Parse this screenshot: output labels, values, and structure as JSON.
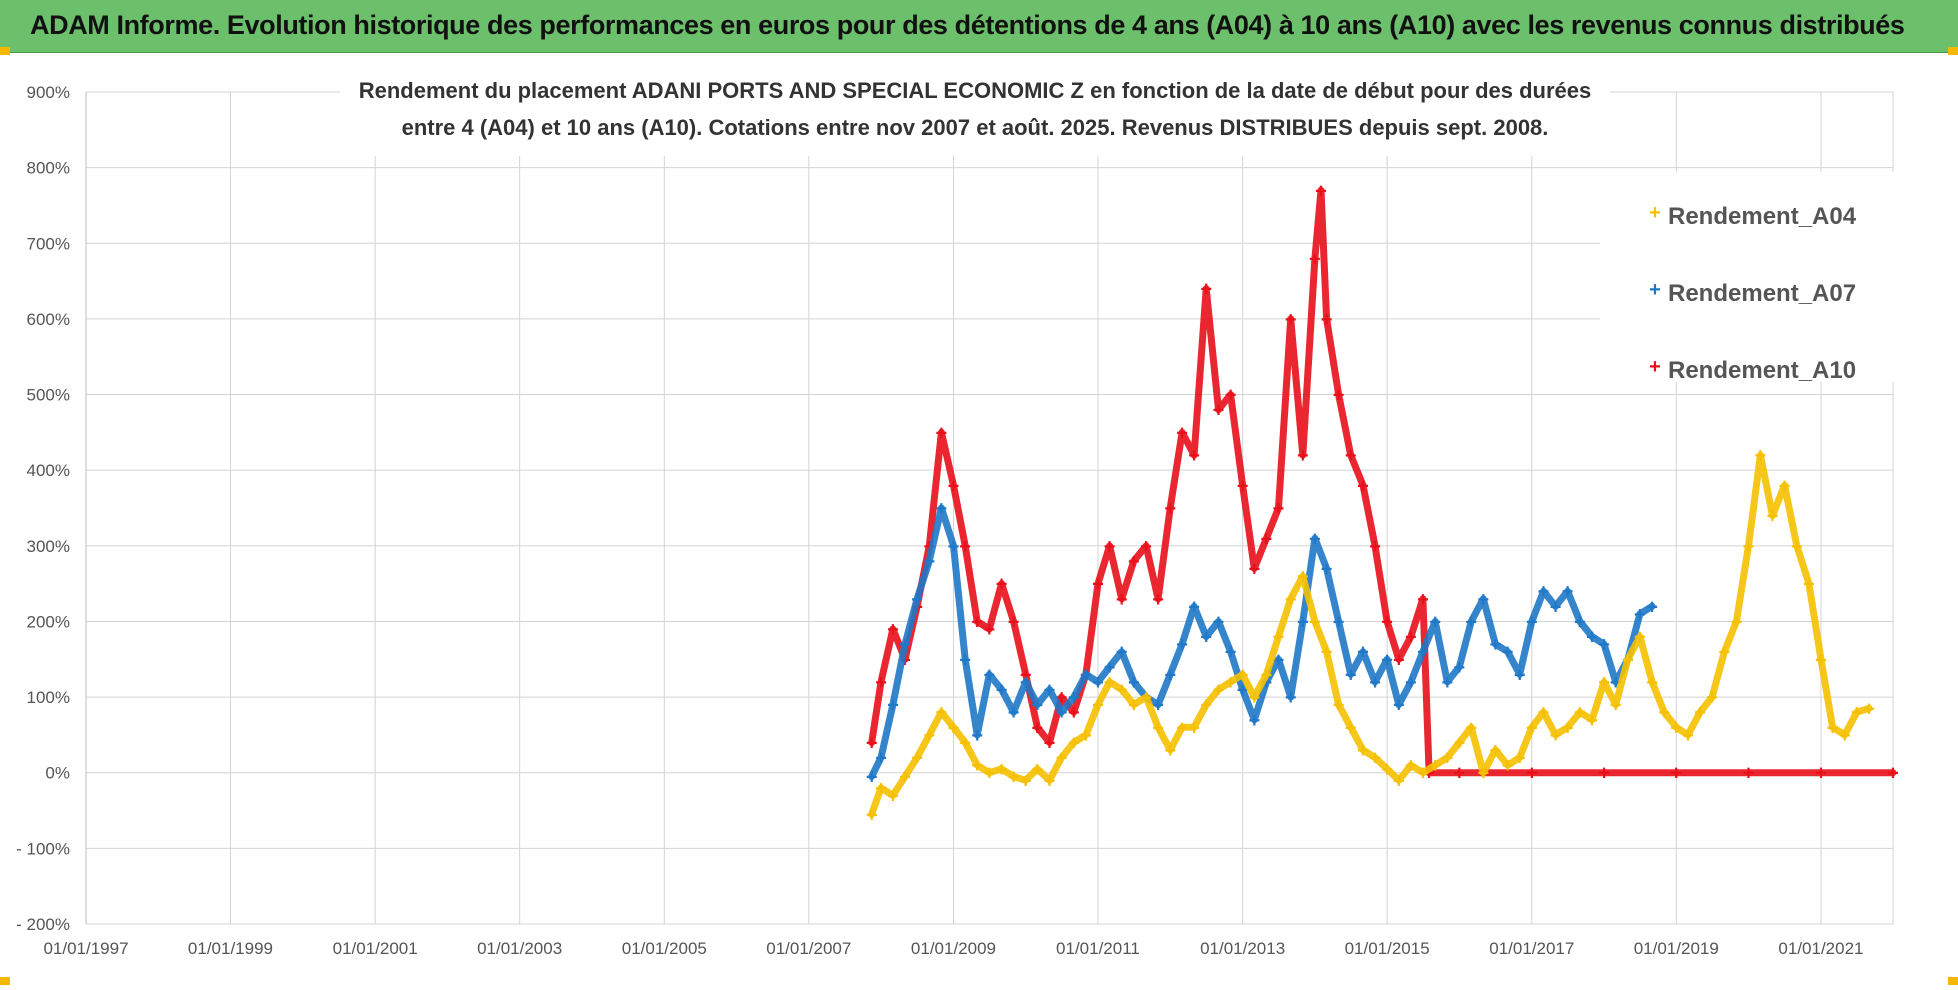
{
  "banner": {
    "title": "ADAM Informe. Evolution historique des performances en euros pour des détentions de 4 ans (A04) à 10 ans (A10) avec les revenus connus distribués"
  },
  "colors": {
    "banner_bg": "#6cc06c",
    "accent_corner": "#f5b800",
    "A04": "#f5c000",
    "A07": "#1f78c8",
    "A10": "#e8101a"
  },
  "chart_data": {
    "type": "scatter",
    "title_line1": "Rendement du placement ADANI PORTS AND SPECIAL ECONOMIC Z en fonction de la date de début pour des durées",
    "title_line2": "entre 4 (A04) et 10 ans (A10). Cotations entre nov 2007 et août. 2025. Revenus DISTRIBUES depuis sept. 2008.",
    "xlabel": "",
    "ylabel": "",
    "x_range": [
      "1997-01-01",
      "2021-12-31"
    ],
    "ylim": [
      -200,
      900
    ],
    "y_ticks": [
      -200,
      -100,
      0,
      100,
      200,
      300,
      400,
      500,
      600,
      700,
      800,
      900
    ],
    "y_tick_labels": [
      "- 200%",
      "- 100%",
      "0%",
      "100%",
      "200%",
      "300%",
      "400%",
      "500%",
      "600%",
      "700%",
      "800%",
      "900%"
    ],
    "x_tick_labels": [
      "01/01/1997",
      "01/01/1999",
      "01/01/2001",
      "01/01/2003",
      "01/01/2005",
      "01/01/2007",
      "01/01/2009",
      "01/01/2011",
      "01/01/2013",
      "01/01/2015",
      "01/01/2017",
      "01/01/2019",
      "01/01/2021"
    ],
    "x_tick_dates": [
      "1997-01-01",
      "1999-01-01",
      "2001-01-01",
      "2003-01-01",
      "2005-01-01",
      "2007-01-01",
      "2009-01-01",
      "2011-01-01",
      "2013-01-01",
      "2015-01-01",
      "2017-01-01",
      "2019-01-01",
      "2021-01-01"
    ],
    "grid": true,
    "legend_position": "top-right",
    "series": [
      {
        "name": "Rendement_A04",
        "marker": "+",
        "points": [
          [
            "2007-11-15",
            -55
          ],
          [
            "2008-01-01",
            -20
          ],
          [
            "2008-03-01",
            -30
          ],
          [
            "2008-05-01",
            -5
          ],
          [
            "2008-07-01",
            20
          ],
          [
            "2008-09-01",
            50
          ],
          [
            "2008-11-01",
            80
          ],
          [
            "2009-01-01",
            60
          ],
          [
            "2009-03-01",
            40
          ],
          [
            "2009-05-01",
            10
          ],
          [
            "2009-07-01",
            0
          ],
          [
            "2009-09-01",
            5
          ],
          [
            "2009-11-01",
            -5
          ],
          [
            "2010-01-01",
            -10
          ],
          [
            "2010-03-01",
            5
          ],
          [
            "2010-05-01",
            -10
          ],
          [
            "2010-07-01",
            20
          ],
          [
            "2010-09-01",
            40
          ],
          [
            "2010-11-01",
            50
          ],
          [
            "2011-01-01",
            90
          ],
          [
            "2011-03-01",
            120
          ],
          [
            "2011-05-01",
            110
          ],
          [
            "2011-07-01",
            90
          ],
          [
            "2011-09-01",
            100
          ],
          [
            "2011-11-01",
            60
          ],
          [
            "2012-01-01",
            30
          ],
          [
            "2012-03-01",
            60
          ],
          [
            "2012-05-01",
            60
          ],
          [
            "2012-07-01",
            90
          ],
          [
            "2012-09-01",
            110
          ],
          [
            "2012-11-01",
            120
          ],
          [
            "2013-01-01",
            130
          ],
          [
            "2013-03-01",
            100
          ],
          [
            "2013-05-01",
            130
          ],
          [
            "2013-07-01",
            180
          ],
          [
            "2013-09-01",
            230
          ],
          [
            "2013-11-01",
            260
          ],
          [
            "2014-01-01",
            200
          ],
          [
            "2014-03-01",
            160
          ],
          [
            "2014-05-01",
            90
          ],
          [
            "2014-07-01",
            60
          ],
          [
            "2014-09-01",
            30
          ],
          [
            "2014-11-01",
            20
          ],
          [
            "2015-01-01",
            5
          ],
          [
            "2015-03-01",
            -10
          ],
          [
            "2015-05-01",
            10
          ],
          [
            "2015-07-01",
            0
          ],
          [
            "2015-09-01",
            10
          ],
          [
            "2015-11-01",
            20
          ],
          [
            "2016-01-01",
            40
          ],
          [
            "2016-03-01",
            60
          ],
          [
            "2016-05-01",
            0
          ],
          [
            "2016-07-01",
            30
          ],
          [
            "2016-09-01",
            10
          ],
          [
            "2016-11-01",
            20
          ],
          [
            "2017-01-01",
            60
          ],
          [
            "2017-03-01",
            80
          ],
          [
            "2017-05-01",
            50
          ],
          [
            "2017-07-01",
            60
          ],
          [
            "2017-09-01",
            80
          ],
          [
            "2017-11-01",
            70
          ],
          [
            "2018-01-01",
            120
          ],
          [
            "2018-03-01",
            90
          ],
          [
            "2018-05-01",
            150
          ],
          [
            "2018-07-01",
            180
          ],
          [
            "2018-09-01",
            120
          ],
          [
            "2018-11-01",
            80
          ],
          [
            "2019-01-01",
            60
          ],
          [
            "2019-03-01",
            50
          ],
          [
            "2019-05-01",
            80
          ],
          [
            "2019-07-01",
            100
          ],
          [
            "2019-09-01",
            160
          ],
          [
            "2019-11-01",
            200
          ],
          [
            "2020-01-01",
            300
          ],
          [
            "2020-03-01",
            420
          ],
          [
            "2020-05-01",
            340
          ],
          [
            "2020-07-01",
            380
          ],
          [
            "2020-09-01",
            300
          ],
          [
            "2020-11-01",
            250
          ],
          [
            "2021-01-01",
            150
          ],
          [
            "2021-03-01",
            60
          ],
          [
            "2021-05-01",
            50
          ],
          [
            "2021-07-01",
            80
          ],
          [
            "2021-09-01",
            85
          ]
        ]
      },
      {
        "name": "Rendement_A07",
        "marker": "+",
        "points": [
          [
            "2007-11-15",
            -5
          ],
          [
            "2008-01-01",
            20
          ],
          [
            "2008-03-01",
            90
          ],
          [
            "2008-05-01",
            170
          ],
          [
            "2008-07-01",
            230
          ],
          [
            "2008-09-01",
            280
          ],
          [
            "2008-11-01",
            350
          ],
          [
            "2009-01-01",
            300
          ],
          [
            "2009-03-01",
            150
          ],
          [
            "2009-05-01",
            50
          ],
          [
            "2009-07-01",
            130
          ],
          [
            "2009-09-01",
            110
          ],
          [
            "2009-11-01",
            80
          ],
          [
            "2010-01-01",
            120
          ],
          [
            "2010-03-01",
            90
          ],
          [
            "2010-05-01",
            110
          ],
          [
            "2010-07-01",
            80
          ],
          [
            "2010-09-01",
            100
          ],
          [
            "2010-11-01",
            130
          ],
          [
            "2011-01-01",
            120
          ],
          [
            "2011-03-01",
            140
          ],
          [
            "2011-05-01",
            160
          ],
          [
            "2011-07-01",
            120
          ],
          [
            "2011-09-01",
            100
          ],
          [
            "2011-11-01",
            90
          ],
          [
            "2012-01-01",
            130
          ],
          [
            "2012-03-01",
            170
          ],
          [
            "2012-05-01",
            220
          ],
          [
            "2012-07-01",
            180
          ],
          [
            "2012-09-01",
            200
          ],
          [
            "2012-11-01",
            160
          ],
          [
            "2013-01-01",
            110
          ],
          [
            "2013-03-01",
            70
          ],
          [
            "2013-05-01",
            120
          ],
          [
            "2013-07-01",
            150
          ],
          [
            "2013-09-01",
            100
          ],
          [
            "2013-11-01",
            200
          ],
          [
            "2014-01-01",
            310
          ],
          [
            "2014-03-01",
            270
          ],
          [
            "2014-05-01",
            200
          ],
          [
            "2014-07-01",
            130
          ],
          [
            "2014-09-01",
            160
          ],
          [
            "2014-11-01",
            120
          ],
          [
            "2015-01-01",
            150
          ],
          [
            "2015-03-01",
            90
          ],
          [
            "2015-05-01",
            120
          ],
          [
            "2015-07-01",
            160
          ],
          [
            "2015-09-01",
            200
          ],
          [
            "2015-11-01",
            120
          ],
          [
            "2016-01-01",
            140
          ],
          [
            "2016-03-01",
            200
          ],
          [
            "2016-05-01",
            230
          ],
          [
            "2016-07-01",
            170
          ],
          [
            "2016-09-01",
            160
          ],
          [
            "2016-11-01",
            130
          ],
          [
            "2017-01-01",
            200
          ],
          [
            "2017-03-01",
            240
          ],
          [
            "2017-05-01",
            220
          ],
          [
            "2017-07-01",
            240
          ],
          [
            "2017-09-01",
            200
          ],
          [
            "2017-11-01",
            180
          ],
          [
            "2018-01-01",
            170
          ],
          [
            "2018-03-01",
            120
          ],
          [
            "2018-05-01",
            150
          ],
          [
            "2018-07-01",
            210
          ],
          [
            "2018-09-01",
            220
          ]
        ]
      },
      {
        "name": "Rendement_A10",
        "marker": "+",
        "points": [
          [
            "2007-11-15",
            40
          ],
          [
            "2008-01-01",
            120
          ],
          [
            "2008-03-01",
            190
          ],
          [
            "2008-05-01",
            150
          ],
          [
            "2008-07-01",
            220
          ],
          [
            "2008-09-01",
            300
          ],
          [
            "2008-11-01",
            450
          ],
          [
            "2009-01-01",
            380
          ],
          [
            "2009-03-01",
            300
          ],
          [
            "2009-05-01",
            200
          ],
          [
            "2009-07-01",
            190
          ],
          [
            "2009-09-01",
            250
          ],
          [
            "2009-11-01",
            200
          ],
          [
            "2010-01-01",
            130
          ],
          [
            "2010-03-01",
            60
          ],
          [
            "2010-05-01",
            40
          ],
          [
            "2010-07-01",
            100
          ],
          [
            "2010-09-01",
            80
          ],
          [
            "2010-11-01",
            130
          ],
          [
            "2011-01-01",
            250
          ],
          [
            "2011-03-01",
            300
          ],
          [
            "2011-05-01",
            230
          ],
          [
            "2011-07-01",
            280
          ],
          [
            "2011-09-01",
            300
          ],
          [
            "2011-11-01",
            230
          ],
          [
            "2012-01-01",
            350
          ],
          [
            "2012-03-01",
            450
          ],
          [
            "2012-05-01",
            420
          ],
          [
            "2012-07-01",
            640
          ],
          [
            "2012-09-01",
            480
          ],
          [
            "2012-11-01",
            500
          ],
          [
            "2013-01-01",
            380
          ],
          [
            "2013-03-01",
            270
          ],
          [
            "2013-05-01",
            310
          ],
          [
            "2013-07-01",
            350
          ],
          [
            "2013-09-01",
            600
          ],
          [
            "2013-11-01",
            420
          ],
          [
            "2014-01-01",
            680
          ],
          [
            "2014-02-01",
            770
          ],
          [
            "2014-03-01",
            600
          ],
          [
            "2014-05-01",
            500
          ],
          [
            "2014-07-01",
            420
          ],
          [
            "2014-09-01",
            380
          ],
          [
            "2014-11-01",
            300
          ],
          [
            "2015-01-01",
            200
          ],
          [
            "2015-03-01",
            150
          ],
          [
            "2015-05-01",
            180
          ],
          [
            "2015-07-01",
            230
          ],
          [
            "2015-08-01",
            0
          ],
          [
            "2016-01-01",
            0
          ],
          [
            "2017-01-01",
            0
          ],
          [
            "2018-01-01",
            0
          ],
          [
            "2019-01-01",
            0
          ],
          [
            "2020-01-01",
            0
          ],
          [
            "2021-01-01",
            0
          ],
          [
            "2021-12-31",
            0
          ]
        ]
      }
    ]
  }
}
